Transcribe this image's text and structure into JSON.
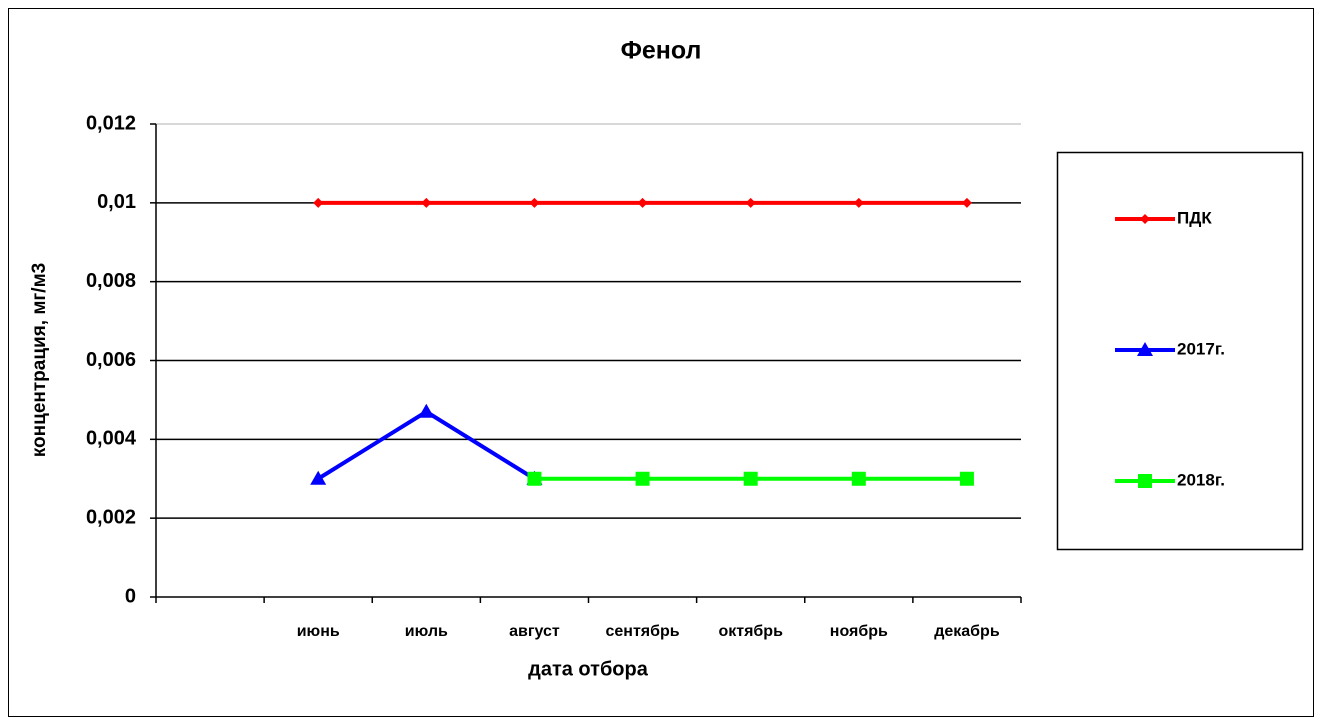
{
  "chart_data": {
    "type": "line",
    "title": "Фенол",
    "y_label": "концентрация, мг/м3",
    "x_label": "дата отбора",
    "categories": [
      null,
      "июнь",
      "июль",
      "август",
      "сентябрь",
      "октябрь",
      "ноябрь",
      "декабрь"
    ],
    "series": [
      {
        "name": "ПДК",
        "color": "#ff0000",
        "marker": "diamond",
        "values": [
          null,
          0.01,
          0.01,
          0.01,
          0.01,
          0.01,
          0.01,
          0.01
        ]
      },
      {
        "name": "2017г.",
        "color": "#0000ff",
        "marker": "triangle",
        "values": [
          null,
          0.003,
          0.0047,
          0.003,
          null,
          null,
          null,
          null
        ]
      },
      {
        "name": "2018г.",
        "color": "#00ff00",
        "marker": "square",
        "values": [
          null,
          null,
          null,
          0.003,
          0.003,
          0.003,
          0.003,
          0.003
        ]
      }
    ],
    "ylim": [
      0,
      0.012
    ],
    "yticks": [
      0,
      {
        "value": 0.002,
        "label": "0,002"
      },
      {
        "value": 0.004,
        "label": "0,004"
      },
      {
        "value": 0.006,
        "label": "0,006"
      },
      {
        "value": 0.008,
        "label": "0,008"
      },
      {
        "value": 0.01,
        "label": "0,01"
      },
      {
        "value": 0.012,
        "label": "0,012"
      }
    ],
    "grid": true,
    "legend": "right"
  }
}
